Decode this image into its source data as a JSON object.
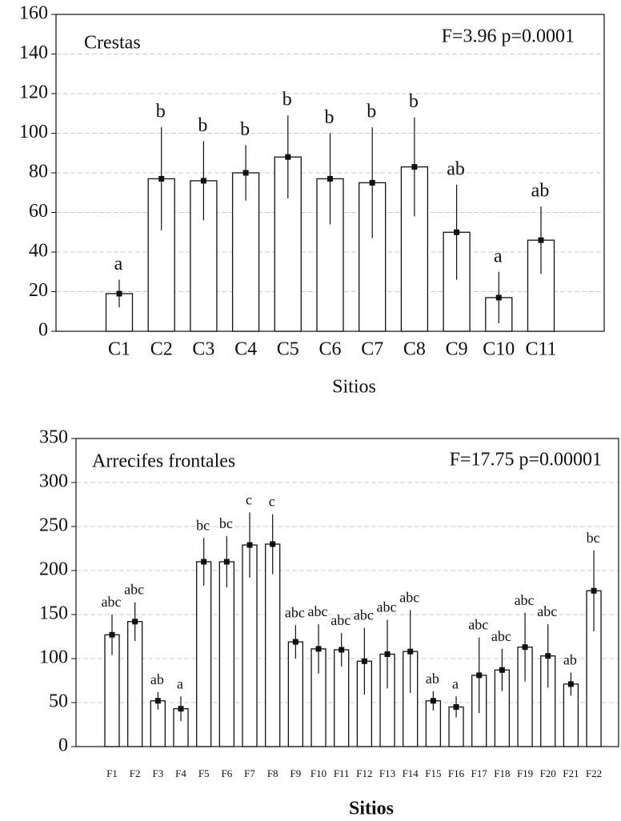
{
  "chart_data": [
    {
      "type": "bar",
      "title": "Crestas",
      "annotation": "F=3.96 p=0.0001",
      "xlabel": "Sitios",
      "categories": [
        "C1",
        "C2",
        "C3",
        "C4",
        "C5",
        "C6",
        "C7",
        "C8",
        "C9",
        "C10",
        "C11"
      ],
      "values": [
        19,
        77,
        76,
        80,
        88,
        77,
        75,
        83,
        50,
        17,
        46
      ],
      "errors": [
        7,
        26,
        20,
        14,
        21,
        23,
        28,
        25,
        24,
        13,
        17
      ],
      "letters": [
        "a",
        "b",
        "b",
        "b",
        "b",
        "b",
        "b",
        "b",
        "ab",
        "a",
        "ab"
      ],
      "ylim": [
        0,
        160
      ],
      "yticks": [
        0,
        20,
        40,
        60,
        80,
        100,
        120,
        140,
        160
      ],
      "grid": true,
      "color": "#ffffff"
    },
    {
      "type": "bar",
      "title": "Arrecifes frontales",
      "annotation": "F=17.75  p=0.00001",
      "xlabel": "Sitios",
      "categories": [
        "F1",
        "F2",
        "F3",
        "F4",
        "F5",
        "F6",
        "F7",
        "F8",
        "F9",
        "F10",
        "F11",
        "F12",
        "F13",
        "F14",
        "F15",
        "F16",
        "F17",
        "F18",
        "F19",
        "F20",
        "F21",
        "F22"
      ],
      "values": [
        127,
        142,
        52,
        43,
        210,
        210,
        229,
        230,
        119,
        111,
        110,
        97,
        105,
        108,
        52,
        45,
        81,
        87,
        113,
        103,
        71,
        177
      ],
      "errors": [
        23,
        22,
        10,
        14,
        27,
        29,
        37,
        34,
        19,
        28,
        19,
        38,
        39,
        47,
        11,
        12,
        43,
        24,
        39,
        36,
        13,
        46
      ],
      "letters": [
        "abc",
        "abc",
        "ab",
        "a",
        "bc",
        "bc",
        "c",
        "c",
        "abc",
        "abc",
        "abc",
        "abc",
        "abc",
        "abc",
        "ab",
        "a",
        "abc",
        "abc",
        "abc",
        "abc",
        "ab",
        "bc"
      ],
      "ylim": [
        0,
        350
      ],
      "yticks": [
        0,
        50,
        100,
        150,
        200,
        250,
        300,
        350
      ],
      "grid": true,
      "color": "#ffffff"
    }
  ]
}
